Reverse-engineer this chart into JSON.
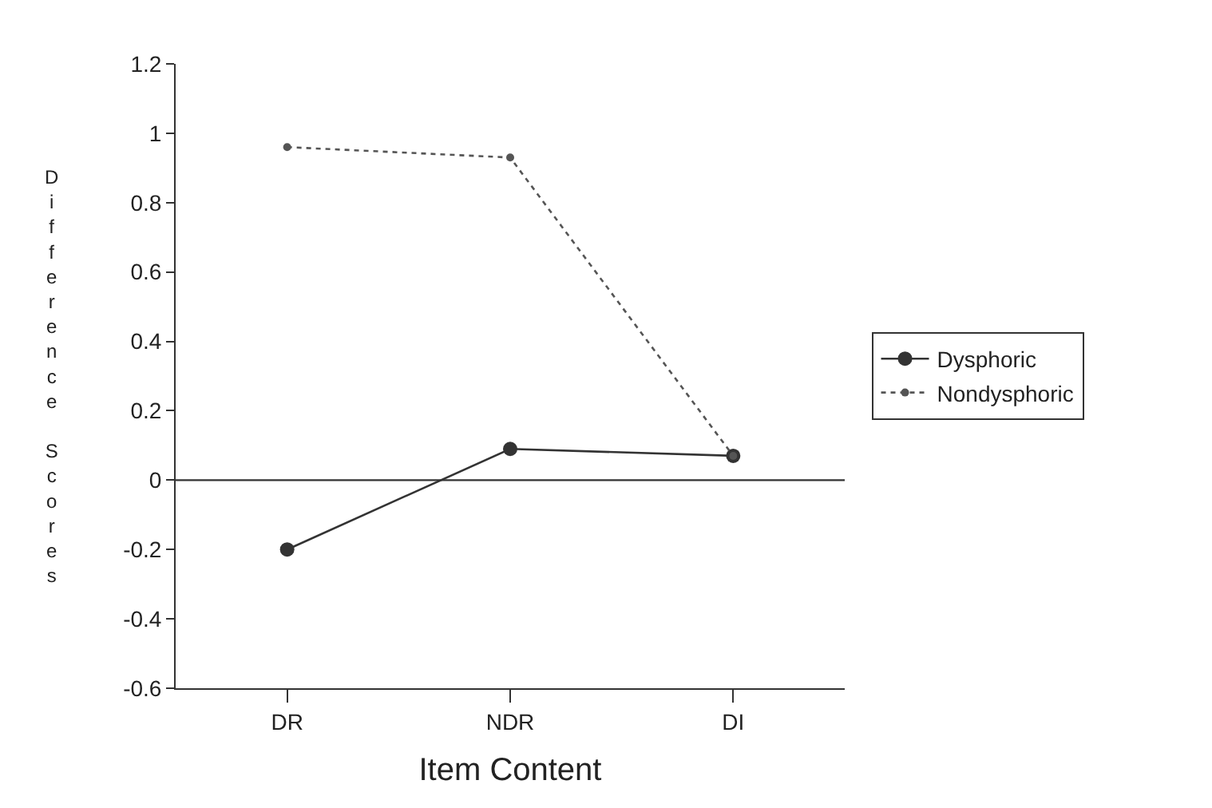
{
  "chart_data": {
    "type": "line",
    "xlabel": "Item Content",
    "ylabel": "Difference Scores",
    "categories": [
      "DR",
      "NDR",
      "DI"
    ],
    "series": [
      {
        "name": "Dysphoric",
        "color": "#333333",
        "values": [
          -0.2,
          0.09,
          0.07
        ],
        "line_style": "solid"
      },
      {
        "name": "Nondysphoric",
        "color": "#555555",
        "values": [
          0.96,
          0.93,
          0.07
        ],
        "line_style": "dotted"
      }
    ],
    "ylim": [
      -0.6,
      1.2
    ],
    "yticks": [
      -0.6,
      -0.4,
      -0.2,
      0,
      0.2,
      0.4,
      0.6,
      0.8,
      1,
      1.2
    ],
    "ref_lines": [
      {
        "axis": "y",
        "value": 0,
        "color": "#333333",
        "line_style": "solid"
      }
    ],
    "marker": "circle",
    "legend": "right"
  }
}
